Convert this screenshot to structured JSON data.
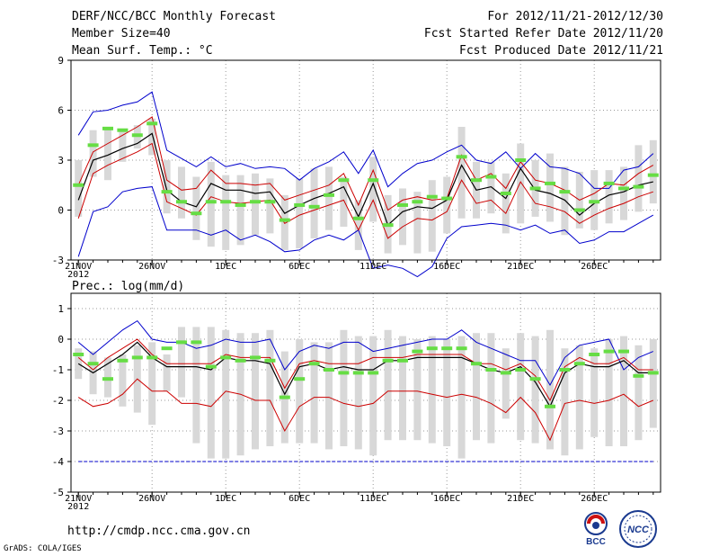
{
  "header": {
    "title": "DERF/NCC/BCC Monthly Forecast",
    "member_size": "Member Size=40",
    "variable": "Mean Surf. Temp.: °C",
    "period": "For 2012/11/21-2012/12/30",
    "started": "Fcst Started Refer Date 2012/11/20",
    "produced": "Fcst Produced Date 2012/11/21"
  },
  "precip_label": "Prec.: log(mm/d)",
  "footer": {
    "url": "http://cmdp.ncc.cma.gov.cn",
    "grads": "GrADS: COLA/IGES"
  },
  "logos": {
    "bcc": "BCC",
    "ncc": "NCC"
  },
  "colors": {
    "ensemble_mean": "#000000",
    "spread_band": "#cc0000",
    "extreme": "#0000cc",
    "observed": "#66dd44",
    "box": "#d8d8d8",
    "grid": "#999999"
  },
  "chart_data": [
    {
      "type": "line",
      "title": "Mean Surf. Temp.: °C",
      "x_tick_labels": [
        "21NOV",
        "26NOV",
        "1DEC",
        "6DEC",
        "11DEC",
        "16DEC",
        "21DEC",
        "26DEC"
      ],
      "x_year_label": "2012",
      "ylim": [
        -3,
        9
      ],
      "yticks": [
        -3,
        0,
        3,
        6,
        9
      ],
      "n_days": 40,
      "series": [
        {
          "name": "max",
          "values": [
            -2.8,
            -0.1,
            0.2,
            1.1,
            1.3,
            1.4,
            -1.2,
            -1.2,
            -1.2,
            -1.5,
            -1.2,
            -1.8,
            -1.5,
            -1.9,
            -2.5,
            -2.4,
            -1.8,
            -1.5,
            -1.8,
            -1.2,
            -3.5,
            -3.3,
            -3.5,
            -4.0,
            -3.4,
            -1.7,
            -1.0,
            -0.9,
            -0.8,
            -0.9,
            -1.2,
            -0.9,
            -1.4,
            -1.2,
            -2.0,
            -1.8,
            -1.3,
            -1.3,
            -0.8,
            -0.3
          ],
          "role": "min"
        },
        {
          "name": "upper",
          "values": [
            4.5,
            5.9,
            6.0,
            6.3,
            6.5,
            7.1,
            3.6,
            3.1,
            2.6,
            3.2,
            2.6,
            2.8,
            2.5,
            2.6,
            2.5,
            1.8,
            2.5,
            2.9,
            3.5,
            2.2,
            3.6,
            1.4,
            2.2,
            2.8,
            3.0,
            3.5,
            3.9,
            3.0,
            2.8,
            3.5,
            2.5,
            3.4,
            2.6,
            2.5,
            2.2,
            1.3,
            1.3,
            2.4,
            2.6,
            3.4
          ],
          "role": "max"
        },
        {
          "name": "ens_hi",
          "values": [
            1.5,
            3.5,
            4.0,
            4.5,
            5.0,
            5.6,
            1.8,
            1.2,
            1.3,
            2.4,
            1.6,
            1.6,
            1.5,
            1.6,
            0.6,
            0.9,
            1.2,
            1.5,
            2.2,
            0.3,
            2.4,
            0.0,
            0.6,
            0.8,
            0.6,
            0.7,
            3.3,
            1.8,
            2.2,
            1.3,
            2.9,
            1.8,
            1.6,
            1.2,
            0.6,
            1.0,
            1.6,
            1.5,
            2.2,
            2.7
          ],
          "role": "spread_hi"
        },
        {
          "name": "ens_mean",
          "values": [
            0.6,
            3.0,
            3.3,
            3.7,
            4.0,
            4.6,
            1.2,
            0.5,
            0.2,
            1.6,
            1.2,
            1.2,
            1.0,
            1.1,
            -0.2,
            0.3,
            0.7,
            1.0,
            1.4,
            -0.4,
            1.6,
            -0.9,
            -0.1,
            0.2,
            0.1,
            0.6,
            2.7,
            1.2,
            1.4,
            0.7,
            2.5,
            1.2,
            1.0,
            0.6,
            -0.3,
            0.4,
            0.9,
            1.1,
            1.5,
            1.7
          ],
          "role": "mean"
        },
        {
          "name": "ens_lo",
          "values": [
            -0.5,
            2.2,
            2.7,
            3.1,
            3.5,
            4.0,
            0.5,
            0.1,
            -0.3,
            0.8,
            0.5,
            0.4,
            0.5,
            0.6,
            -0.8,
            -0.3,
            0.0,
            0.3,
            0.6,
            -1.2,
            0.6,
            -1.7,
            -1.0,
            -0.5,
            -0.6,
            -0.1,
            1.8,
            0.4,
            0.6,
            -0.2,
            1.7,
            0.4,
            0.2,
            -0.1,
            -0.8,
            -0.3,
            0.1,
            0.4,
            0.8,
            1.1
          ],
          "role": "spread_lo"
        },
        {
          "name": "observed",
          "values": [
            1.5,
            3.9,
            4.9,
            4.8,
            4.5,
            5.2,
            1.1,
            0.5,
            -0.2,
            0.5,
            0.5,
            0.3,
            0.5,
            0.5,
            -0.6,
            0.3,
            0.2,
            0.9,
            1.8,
            -0.5,
            1.8,
            -0.9,
            0.3,
            0.5,
            0.8,
            0.7,
            3.2,
            1.8,
            2.0,
            1.0,
            3.0,
            1.3,
            1.6,
            1.1,
            0.0,
            0.5,
            1.6,
            1.3,
            1.4,
            2.1
          ],
          "role": "obs"
        },
        {
          "name": "box_top",
          "values": [
            3.0,
            4.8,
            5.0,
            4.8,
            5.1,
            5.5,
            3.0,
            2.6,
            2.0,
            2.9,
            2.1,
            2.1,
            2.2,
            1.9,
            0.9,
            1.9,
            2.5,
            2.6,
            2.0,
            0.6,
            3.2,
            0.9,
            1.3,
            1.1,
            1.8,
            2.0,
            5.0,
            2.9,
            2.9,
            2.2,
            4.0,
            3.0,
            3.4,
            2.6,
            2.3,
            2.4,
            2.4,
            2.6,
            3.9,
            4.2
          ],
          "role": "box_hi"
        },
        {
          "name": "box_bottom",
          "values": [
            -0.4,
            2.0,
            1.8,
            2.9,
            3.7,
            3.3,
            -0.2,
            -0.5,
            -1.8,
            -2.2,
            -2.4,
            -2.1,
            -1.5,
            -1.4,
            -2.4,
            -2.3,
            -1.7,
            -1.2,
            -1.0,
            -2.4,
            -0.7,
            -2.6,
            -2.1,
            -2.6,
            -2.5,
            -1.4,
            -0.5,
            -0.5,
            -0.2,
            -1.4,
            -0.8,
            -0.4,
            -0.7,
            -1.5,
            -1.1,
            -1.2,
            -0.8,
            -0.6,
            -0.1,
            0.4
          ],
          "role": "box_lo"
        }
      ]
    },
    {
      "type": "line",
      "title": "Prec.: log(mm/d)",
      "x_tick_labels": [
        "21NOV",
        "26NOV",
        "1DEC",
        "6DEC",
        "11DEC",
        "16DEC",
        "21DEC",
        "26DEC"
      ],
      "x_year_label": "2012",
      "ylim": [
        -5,
        1.5
      ],
      "yticks": [
        -5,
        -4,
        -3,
        -2,
        -1,
        0,
        1
      ],
      "n_days": 40,
      "series": [
        {
          "name": "baseline",
          "values": [
            -4,
            -4,
            -4,
            -4,
            -4,
            -4,
            -4,
            -4,
            -4,
            -4,
            -4,
            -4,
            -4,
            -4,
            -4,
            -4,
            -4,
            -4,
            -4,
            -4,
            -4,
            -4,
            -4,
            -4,
            -4,
            -4,
            -4,
            -4,
            -4,
            -4,
            -4,
            -4,
            -4,
            -4,
            -4,
            -4,
            -4,
            -4,
            -4,
            -4
          ],
          "role": "min"
        },
        {
          "name": "upper",
          "values": [
            -0.1,
            -0.5,
            -0.1,
            0.3,
            0.6,
            0.0,
            -0.1,
            -0.1,
            -0.3,
            -0.2,
            0.0,
            -0.1,
            -0.1,
            0.0,
            -1.0,
            -0.4,
            -0.2,
            -0.3,
            -0.1,
            -0.1,
            -0.4,
            -0.3,
            -0.2,
            -0.1,
            0.0,
            0.0,
            0.3,
            -0.1,
            -0.3,
            -0.5,
            -0.7,
            -0.7,
            -1.5,
            -0.6,
            -0.2,
            -0.1,
            0.0,
            -1.0,
            -0.6,
            -0.4
          ],
          "role": "max"
        },
        {
          "name": "ens_hi",
          "values": [
            -0.6,
            -1.0,
            -0.6,
            -0.3,
            0.0,
            -0.5,
            -0.8,
            -0.8,
            -0.8,
            -0.8,
            -0.5,
            -0.6,
            -0.6,
            -0.6,
            -1.6,
            -0.8,
            -0.7,
            -0.8,
            -0.8,
            -0.8,
            -0.6,
            -0.6,
            -0.6,
            -0.5,
            -0.5,
            -0.5,
            -0.5,
            -0.8,
            -0.8,
            -1.0,
            -0.8,
            -1.2,
            -2.0,
            -0.9,
            -0.6,
            -0.8,
            -0.8,
            -0.6,
            -1.0,
            -1.0
          ],
          "role": "spread_hi"
        },
        {
          "name": "ens_mean",
          "values": [
            -0.8,
            -1.1,
            -0.8,
            -0.5,
            -0.1,
            -0.6,
            -0.9,
            -0.9,
            -0.9,
            -1.0,
            -0.6,
            -0.7,
            -0.7,
            -0.8,
            -1.8,
            -0.9,
            -0.8,
            -1.0,
            -0.9,
            -1.0,
            -1.0,
            -0.7,
            -0.7,
            -0.6,
            -0.6,
            -0.6,
            -0.6,
            -0.8,
            -1.0,
            -1.1,
            -0.9,
            -1.4,
            -2.2,
            -1.1,
            -0.8,
            -0.9,
            -0.9,
            -0.7,
            -1.1,
            -1.1
          ],
          "role": "mean"
        },
        {
          "name": "ens_lo",
          "values": [
            -1.9,
            -2.2,
            -2.1,
            -1.8,
            -1.3,
            -1.7,
            -1.7,
            -2.1,
            -2.1,
            -2.2,
            -1.7,
            -1.8,
            -2.0,
            -2.0,
            -3.0,
            -2.2,
            -1.9,
            -1.9,
            -2.1,
            -2.2,
            -2.1,
            -1.7,
            -1.7,
            -1.7,
            -1.8,
            -1.9,
            -1.8,
            -1.9,
            -2.1,
            -2.4,
            -1.9,
            -2.4,
            -3.3,
            -2.1,
            -2.0,
            -2.1,
            -2.0,
            -1.8,
            -2.2,
            -2.0
          ],
          "role": "spread_lo"
        },
        {
          "name": "observed",
          "values": [
            -0.5,
            -0.8,
            -1.3,
            -0.7,
            -0.6,
            -0.6,
            -0.3,
            -0.1,
            -0.1,
            -0.9,
            -0.6,
            -0.7,
            -0.6,
            -0.7,
            -1.9,
            -1.3,
            -0.8,
            -1.0,
            -1.1,
            -1.1,
            -1.1,
            -0.7,
            -0.7,
            -0.4,
            -0.3,
            -0.3,
            -0.3,
            -0.8,
            -1.0,
            -1.1,
            -1.0,
            -1.3,
            -2.2,
            -1.0,
            -0.8,
            -0.5,
            -0.4,
            -0.4,
            -1.2,
            -1.1
          ],
          "role": "obs"
        },
        {
          "name": "box_top",
          "values": [
            -0.3,
            -0.4,
            -0.6,
            -0.5,
            -0.2,
            -0.1,
            -0.5,
            0.4,
            0.4,
            0.4,
            0.3,
            0.2,
            0.2,
            0.3,
            -0.4,
            0.0,
            -0.1,
            -0.1,
            0.3,
            0.1,
            0.1,
            0.3,
            0.1,
            0.0,
            0.1,
            0.0,
            0.1,
            0.2,
            0.2,
            -0.3,
            0.2,
            0.1,
            0.3,
            -0.3,
            -0.2,
            -0.3,
            0.0,
            0.1,
            -0.2,
            0.0
          ],
          "role": "box_hi"
        },
        {
          "name": "box_bottom",
          "values": [
            -1.3,
            -1.8,
            -1.9,
            -2.2,
            -2.4,
            -2.8,
            -1.7,
            -1.9,
            -3.4,
            -3.9,
            -3.9,
            -3.8,
            -3.6,
            -3.5,
            -3.4,
            -3.4,
            -3.4,
            -3.6,
            -3.5,
            -3.6,
            -3.8,
            -3.3,
            -3.3,
            -3.3,
            -3.4,
            -3.5,
            -3.9,
            -3.3,
            -3.4,
            -2.6,
            -3.3,
            -3.4,
            -3.6,
            -3.8,
            -3.6,
            -3.2,
            -3.5,
            -3.5,
            -3.3,
            -2.9
          ],
          "role": "box_lo"
        }
      ]
    }
  ]
}
